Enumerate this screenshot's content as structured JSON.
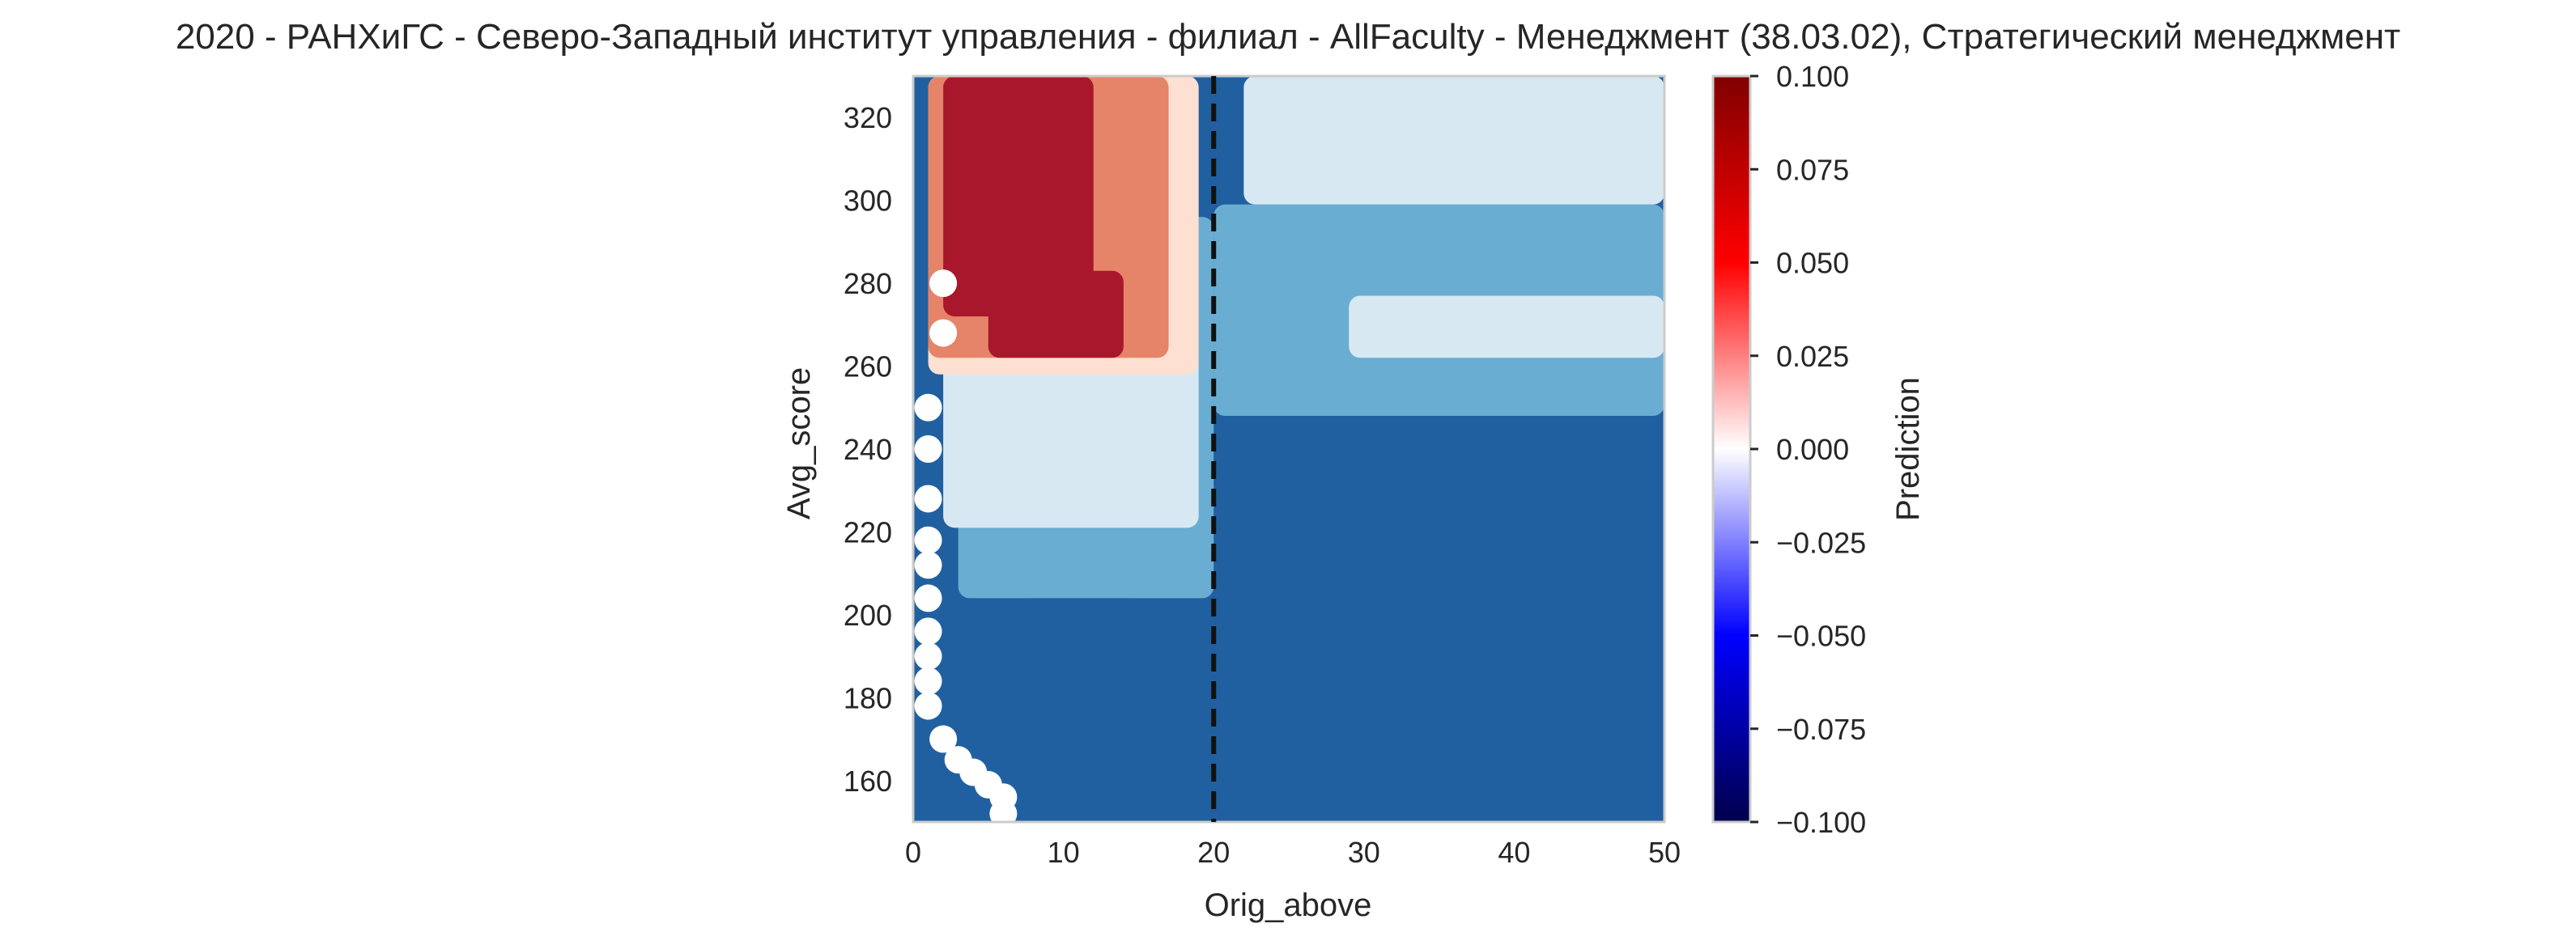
{
  "chart_data": {
    "type": "heatmap",
    "title": "2020 - РАНХиГС - Северо-Западный институт управления - филиал - AllFaculty - Менеджмент (38.03.02), Стратегический менеджмент",
    "xlabel": "Orig_above",
    "ylabel": "Avg_score",
    "xlim": [
      0,
      50
    ],
    "ylim": [
      150,
      330
    ],
    "x_ticks": [
      "0",
      "10",
      "20",
      "30",
      "40",
      "50"
    ],
    "y_ticks": [
      "160",
      "180",
      "200",
      "220",
      "240",
      "260",
      "280",
      "300",
      "320"
    ],
    "grid": false,
    "reference_line": {
      "x": 20,
      "style": "dashed",
      "color": "#111111"
    },
    "colorbar": {
      "label": "Prediction",
      "cmap": "seismic",
      "range": [
        -0.1,
        0.1
      ],
      "ticks": [
        "0.100",
        "0.075",
        "0.050",
        "0.025",
        "0.000",
        "−0.025",
        "−0.050",
        "−0.075",
        "−0.100"
      ]
    },
    "level_colors": {
      "lowest": "#2060a0",
      "low": "#6aadd2",
      "near_zero_neg": "#d8e8f2",
      "near_zero_pos": "#fde0d1",
      "mid_pos": "#e58468",
      "high_pos": "#a8172b"
    },
    "regions": [
      {
        "level": "lowest",
        "x": [
          0,
          50
        ],
        "y": [
          150,
          330
        ]
      },
      {
        "level": "low",
        "x": [
          3,
          20
        ],
        "y": [
          204,
          296
        ]
      },
      {
        "level": "low",
        "x": [
          20,
          50
        ],
        "y": [
          248,
          299
        ]
      },
      {
        "level": "near_zero_neg",
        "x": [
          2,
          19
        ],
        "y": [
          221,
          263
        ]
      },
      {
        "level": "near_zero_neg",
        "x": [
          22,
          50
        ],
        "y": [
          299,
          330
        ]
      },
      {
        "level": "near_zero_neg",
        "x": [
          29,
          50
        ],
        "y": [
          262,
          277
        ]
      },
      {
        "level": "near_zero_pos",
        "x": [
          1,
          19
        ],
        "y": [
          258,
          330
        ]
      },
      {
        "level": "mid_pos",
        "x": [
          1,
          17
        ],
        "y": [
          262,
          330
        ]
      },
      {
        "level": "high_pos",
        "x": [
          2,
          12
        ],
        "y": [
          272,
          330
        ]
      },
      {
        "level": "high_pos",
        "x": [
          5,
          14
        ],
        "y": [
          262,
          283
        ]
      }
    ],
    "white_markers": [
      {
        "x": 1,
        "y": 250
      },
      {
        "x": 1,
        "y": 240
      },
      {
        "x": 1,
        "y": 228
      },
      {
        "x": 1,
        "y": 218
      },
      {
        "x": 1,
        "y": 212
      },
      {
        "x": 1,
        "y": 204
      },
      {
        "x": 1,
        "y": 196
      },
      {
        "x": 1,
        "y": 190
      },
      {
        "x": 1,
        "y": 184
      },
      {
        "x": 1,
        "y": 178
      },
      {
        "x": 2,
        "y": 170
      },
      {
        "x": 3,
        "y": 165
      },
      {
        "x": 4,
        "y": 162
      },
      {
        "x": 5,
        "y": 159
      },
      {
        "x": 6,
        "y": 156
      },
      {
        "x": 6,
        "y": 152
      },
      {
        "x": 2,
        "y": 280
      },
      {
        "x": 2,
        "y": 268
      }
    ]
  }
}
